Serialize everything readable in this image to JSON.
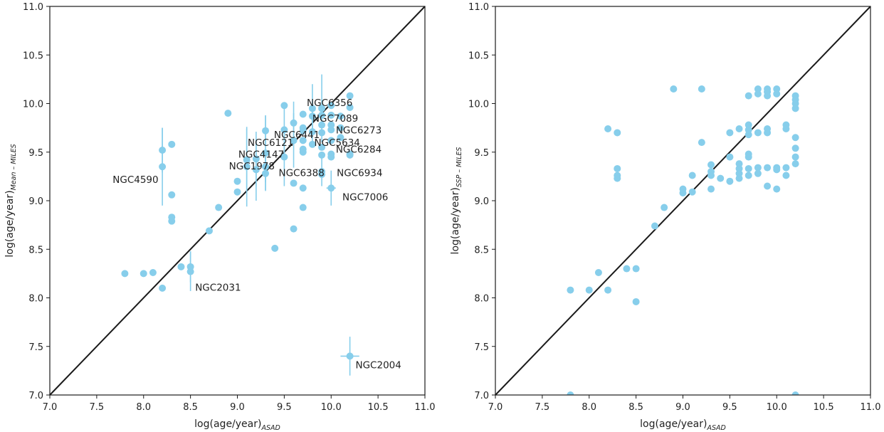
{
  "chart_data": [
    {
      "type": "scatter",
      "panel": "left",
      "xlabel": "log(age/year)",
      "xlabel_sub": "ASAD",
      "ylabel": "log(age/year)",
      "ylabel_sub": "Mean – MILES",
      "xlim": [
        7.0,
        11.0
      ],
      "ylim": [
        7.0,
        11.0
      ],
      "xticks": [
        "7.0",
        "7.5",
        "8.0",
        "8.5",
        "9.0",
        "9.5",
        "10.0",
        "10.5",
        "11.0"
      ],
      "yticks": [
        "7.0",
        "7.5",
        "8.0",
        "8.5",
        "9.0",
        "9.5",
        "10.0",
        "10.5",
        "11.0"
      ],
      "identity_line": true,
      "color": "#87ceeb",
      "line_color": "#1a1a1a",
      "points": [
        {
          "x": 7.8,
          "y": 8.25
        },
        {
          "x": 8.0,
          "y": 8.25
        },
        {
          "x": 8.1,
          "y": 8.26
        },
        {
          "x": 8.2,
          "y": 8.1
        },
        {
          "x": 8.2,
          "y": 9.52,
          "yerr": 0.23
        },
        {
          "x": 8.2,
          "y": 9.35,
          "yerr": 0.4
        },
        {
          "x": 8.3,
          "y": 9.58
        },
        {
          "x": 8.3,
          "y": 9.06
        },
        {
          "x": 8.3,
          "y": 8.83
        },
        {
          "x": 8.3,
          "y": 8.79
        },
        {
          "x": 8.4,
          "y": 8.32
        },
        {
          "x": 8.5,
          "y": 8.32,
          "yerr": 0.16
        },
        {
          "x": 8.5,
          "y": 8.27,
          "yerr": 0.2
        },
        {
          "x": 8.7,
          "y": 8.69
        },
        {
          "x": 8.8,
          "y": 8.93
        },
        {
          "x": 8.9,
          "y": 9.9
        },
        {
          "x": 9.0,
          "y": 9.2
        },
        {
          "x": 9.0,
          "y": 9.09
        },
        {
          "x": 9.1,
          "y": 9.42,
          "yerr": 0.32
        },
        {
          "x": 9.1,
          "y": 9.35,
          "yerr": 0.41
        },
        {
          "x": 9.2,
          "y": 9.43,
          "yerr": 0.28
        },
        {
          "x": 9.2,
          "y": 9.32,
          "yerr": 0.32
        },
        {
          "x": 9.3,
          "y": 9.72,
          "yerr": 0.16
        },
        {
          "x": 9.3,
          "y": 9.49,
          "yerr": 0.38
        },
        {
          "x": 9.3,
          "y": 9.35,
          "yerr": 0.16
        },
        {
          "x": 9.3,
          "y": 9.28,
          "yerr": 0.18
        },
        {
          "x": 9.4,
          "y": 8.51
        },
        {
          "x": 9.5,
          "y": 9.98
        },
        {
          "x": 9.5,
          "y": 9.73,
          "yerr": 0.25
        },
        {
          "x": 9.5,
          "y": 9.45,
          "yerr": 0.3
        },
        {
          "x": 9.6,
          "y": 9.8,
          "yerr": 0.22
        },
        {
          "x": 9.6,
          "y": 9.62,
          "yerr": 0.28
        },
        {
          "x": 9.6,
          "y": 9.18
        },
        {
          "x": 9.6,
          "y": 8.71
        },
        {
          "x": 9.7,
          "y": 9.89
        },
        {
          "x": 9.7,
          "y": 9.75
        },
        {
          "x": 9.7,
          "y": 9.72
        },
        {
          "x": 9.7,
          "y": 9.62
        },
        {
          "x": 9.7,
          "y": 9.53
        },
        {
          "x": 9.7,
          "y": 9.5
        },
        {
          "x": 9.7,
          "y": 9.13
        },
        {
          "x": 9.7,
          "y": 8.93
        },
        {
          "x": 9.8,
          "y": 9.95,
          "yerr": 0.25
        },
        {
          "x": 9.8,
          "y": 9.87,
          "yerr": 0.15
        },
        {
          "x": 9.8,
          "y": 9.71,
          "yerr": 0.12
        },
        {
          "x": 9.8,
          "y": 9.58
        },
        {
          "x": 9.9,
          "y": 9.95,
          "yerr": 0.35
        },
        {
          "x": 9.9,
          "y": 9.88
        },
        {
          "x": 9.9,
          "y": 9.78
        },
        {
          "x": 9.9,
          "y": 9.7
        },
        {
          "x": 9.9,
          "y": 9.55
        },
        {
          "x": 9.9,
          "y": 9.47
        },
        {
          "x": 9.9,
          "y": 9.3,
          "yerr": 0.15
        },
        {
          "x": 9.9,
          "y": 9.27
        },
        {
          "x": 10.0,
          "y": 9.98
        },
        {
          "x": 10.0,
          "y": 9.88
        },
        {
          "x": 10.0,
          "y": 9.78
        },
        {
          "x": 10.0,
          "y": 9.73
        },
        {
          "x": 10.0,
          "y": 9.62
        },
        {
          "x": 10.0,
          "y": 9.48
        },
        {
          "x": 10.0,
          "y": 9.45
        },
        {
          "x": 10.0,
          "y": 9.13,
          "xerr": 0.05,
          "yerr": 0.18
        },
        {
          "x": 10.1,
          "y": 9.87
        },
        {
          "x": 10.1,
          "y": 9.75
        },
        {
          "x": 10.1,
          "y": 9.65
        },
        {
          "x": 10.2,
          "y": 10.08
        },
        {
          "x": 10.2,
          "y": 9.96
        },
        {
          "x": 10.2,
          "y": 9.48
        },
        {
          "x": 10.2,
          "y": 9.47
        },
        {
          "x": 10.2,
          "y": 7.4,
          "xerr": 0.1,
          "yerr": 0.2
        }
      ],
      "annotations": [
        {
          "text": "NGC6356",
          "x": 9.74,
          "y": 10.01,
          "anchor": "start"
        },
        {
          "text": "NGC7089",
          "x": 9.8,
          "y": 9.85,
          "anchor": "start"
        },
        {
          "text": "NGC6273",
          "x": 10.05,
          "y": 9.73,
          "anchor": "start"
        },
        {
          "text": "NGC6441",
          "x": 9.39,
          "y": 9.68,
          "anchor": "start"
        },
        {
          "text": "NGC5634",
          "x": 9.82,
          "y": 9.6,
          "anchor": "start"
        },
        {
          "text": "NGC6121",
          "x": 9.11,
          "y": 9.6,
          "anchor": "start"
        },
        {
          "text": "NGC6284",
          "x": 10.05,
          "y": 9.53,
          "anchor": "start"
        },
        {
          "text": "NGC4147",
          "x": 9.01,
          "y": 9.48,
          "anchor": "start"
        },
        {
          "text": "NGC1978",
          "x": 8.91,
          "y": 9.36,
          "anchor": "start"
        },
        {
          "text": "NGC6388",
          "x": 9.44,
          "y": 9.29,
          "anchor": "start"
        },
        {
          "text": "NGC6934",
          "x": 10.06,
          "y": 9.29,
          "anchor": "start"
        },
        {
          "text": "NGC4590",
          "x": 7.67,
          "y": 9.22,
          "anchor": "start"
        },
        {
          "text": "NGC7006",
          "x": 10.12,
          "y": 9.04,
          "anchor": "start"
        },
        {
          "text": "NGC2031",
          "x": 8.55,
          "y": 8.11,
          "anchor": "start"
        },
        {
          "text": "NGC2004",
          "x": 10.26,
          "y": 7.31,
          "anchor": "start"
        }
      ]
    },
    {
      "type": "scatter",
      "panel": "right",
      "xlabel": "log(age/year)",
      "xlabel_sub": "ASAD",
      "ylabel": "log(age/year)",
      "ylabel_sub": "SSP – MILES",
      "xlim": [
        7.0,
        11.0
      ],
      "ylim": [
        7.0,
        11.0
      ],
      "xticks": [
        "7.0",
        "7.5",
        "8.0",
        "8.5",
        "9.0",
        "9.5",
        "10.0",
        "10.5",
        "11.0"
      ],
      "yticks": [
        "7.0",
        "7.5",
        "8.0",
        "8.5",
        "9.0",
        "9.5",
        "10.0",
        "10.5",
        "11.0"
      ],
      "identity_line": true,
      "color": "#87ceeb",
      "line_color": "#1a1a1a",
      "points": [
        {
          "x": 7.8,
          "y": 8.08
        },
        {
          "x": 7.8,
          "y": 7.0
        },
        {
          "x": 8.0,
          "y": 8.08
        },
        {
          "x": 8.1,
          "y": 8.26
        },
        {
          "x": 8.2,
          "y": 9.74
        },
        {
          "x": 8.2,
          "y": 8.08
        },
        {
          "x": 8.3,
          "y": 9.7
        },
        {
          "x": 8.3,
          "y": 9.33
        },
        {
          "x": 8.3,
          "y": 9.26
        },
        {
          "x": 8.3,
          "y": 9.23
        },
        {
          "x": 8.4,
          "y": 8.3
        },
        {
          "x": 8.5,
          "y": 8.3
        },
        {
          "x": 8.5,
          "y": 7.96
        },
        {
          "x": 8.7,
          "y": 8.74
        },
        {
          "x": 8.8,
          "y": 8.93
        },
        {
          "x": 8.9,
          "y": 10.15
        },
        {
          "x": 9.0,
          "y": 9.12
        },
        {
          "x": 9.0,
          "y": 9.08
        },
        {
          "x": 9.1,
          "y": 9.26
        },
        {
          "x": 9.1,
          "y": 9.09
        },
        {
          "x": 9.2,
          "y": 10.15
        },
        {
          "x": 9.2,
          "y": 9.6
        },
        {
          "x": 9.3,
          "y": 9.37
        },
        {
          "x": 9.3,
          "y": 9.3
        },
        {
          "x": 9.3,
          "y": 9.26
        },
        {
          "x": 9.3,
          "y": 9.12
        },
        {
          "x": 9.4,
          "y": 9.23
        },
        {
          "x": 9.5,
          "y": 9.7
        },
        {
          "x": 9.5,
          "y": 9.45
        },
        {
          "x": 9.5,
          "y": 9.2
        },
        {
          "x": 9.6,
          "y": 9.74
        },
        {
          "x": 9.6,
          "y": 9.38
        },
        {
          "x": 9.6,
          "y": 9.33
        },
        {
          "x": 9.6,
          "y": 9.28
        },
        {
          "x": 9.6,
          "y": 9.23
        },
        {
          "x": 9.7,
          "y": 10.08
        },
        {
          "x": 9.7,
          "y": 9.78
        },
        {
          "x": 9.7,
          "y": 9.73
        },
        {
          "x": 9.7,
          "y": 9.68
        },
        {
          "x": 9.7,
          "y": 9.48
        },
        {
          "x": 9.7,
          "y": 9.45
        },
        {
          "x": 9.7,
          "y": 9.33
        },
        {
          "x": 9.7,
          "y": 9.26
        },
        {
          "x": 9.8,
          "y": 10.15
        },
        {
          "x": 9.8,
          "y": 10.1
        },
        {
          "x": 9.8,
          "y": 9.7
        },
        {
          "x": 9.8,
          "y": 9.34
        },
        {
          "x": 9.8,
          "y": 9.28
        },
        {
          "x": 9.9,
          "y": 10.15
        },
        {
          "x": 9.9,
          "y": 10.12
        },
        {
          "x": 9.9,
          "y": 10.08
        },
        {
          "x": 9.9,
          "y": 9.74
        },
        {
          "x": 9.9,
          "y": 9.7
        },
        {
          "x": 9.9,
          "y": 9.34
        },
        {
          "x": 9.9,
          "y": 9.15
        },
        {
          "x": 10.0,
          "y": 10.15
        },
        {
          "x": 10.0,
          "y": 10.1
        },
        {
          "x": 10.0,
          "y": 9.34
        },
        {
          "x": 10.0,
          "y": 9.32
        },
        {
          "x": 10.0,
          "y": 9.12
        },
        {
          "x": 10.1,
          "y": 9.78
        },
        {
          "x": 10.1,
          "y": 9.74
        },
        {
          "x": 10.1,
          "y": 9.34
        },
        {
          "x": 10.1,
          "y": 9.26
        },
        {
          "x": 10.2,
          "y": 10.08
        },
        {
          "x": 10.2,
          "y": 10.04
        },
        {
          "x": 10.2,
          "y": 10.0
        },
        {
          "x": 10.2,
          "y": 9.95
        },
        {
          "x": 10.2,
          "y": 9.65
        },
        {
          "x": 10.2,
          "y": 9.54
        },
        {
          "x": 10.2,
          "y": 9.45
        },
        {
          "x": 10.2,
          "y": 9.38
        },
        {
          "x": 10.2,
          "y": 7.0
        }
      ],
      "annotations": []
    }
  ]
}
